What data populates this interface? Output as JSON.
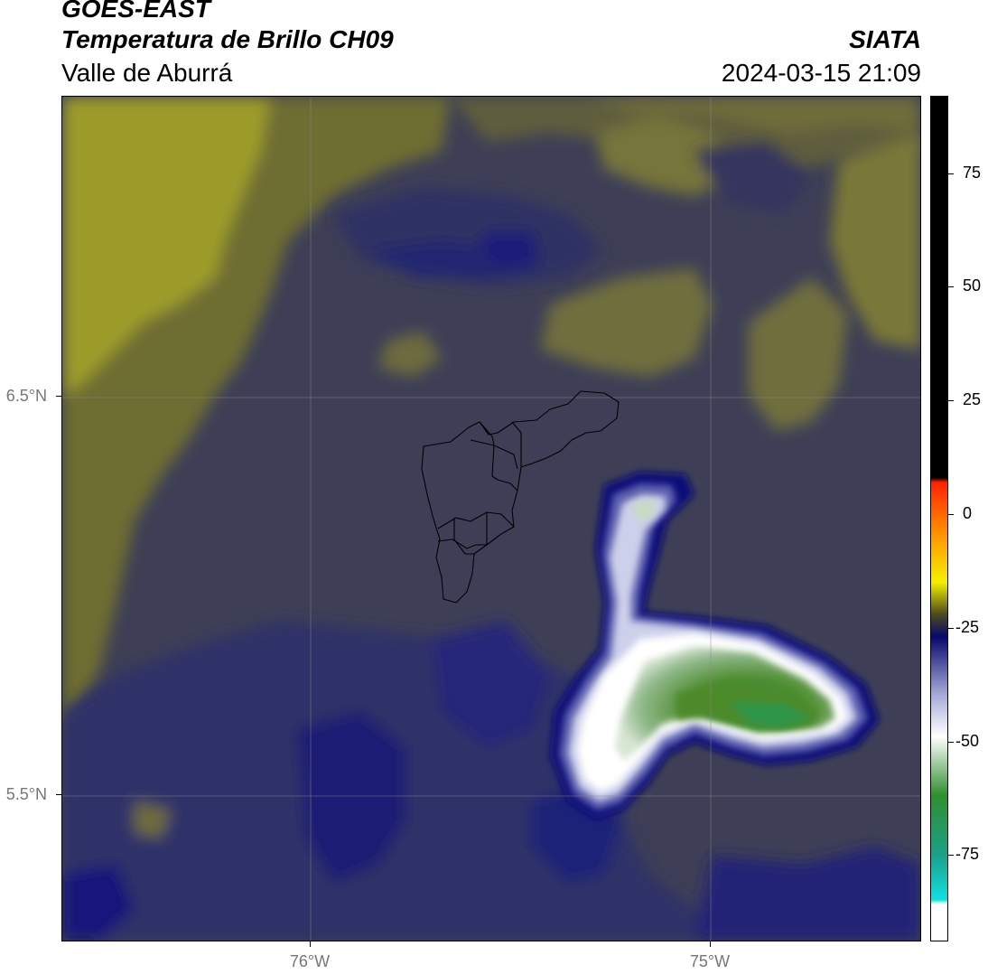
{
  "header": {
    "title": "GOES-EAST",
    "subtitle": "Temperatura de Brillo CH09",
    "region": "Valle de Aburrá",
    "organization": "SIATA",
    "timestamp": "2024-03-15 21:09"
  },
  "map": {
    "latitude_labels": [
      "6.5°N",
      "5.5°N"
    ],
    "longitude_labels": [
      "76°W",
      "75°W"
    ],
    "grid_lines": true,
    "background_color": "#3e3f56",
    "features": [
      "cold cloud top core (green, below -60)",
      "anvil (white/lavender, about -45 to -55)",
      "Aburrá Valley municipal boundaries outline"
    ]
  },
  "colorbar": {
    "tick_labels": [
      "75",
      "50",
      "25",
      "0",
      "-25",
      "-50",
      "-75"
    ],
    "stops": [
      {
        "value": 90,
        "color": "#000000"
      },
      {
        "value": 8,
        "color": "#000000"
      },
      {
        "value": 7,
        "color": "#ff2200"
      },
      {
        "value": -5,
        "color": "#ff9900"
      },
      {
        "value": -15,
        "color": "#f5f000"
      },
      {
        "value": -22,
        "color": "#4f4c1c"
      },
      {
        "value": -27,
        "color": "#08086e"
      },
      {
        "value": -40,
        "color": "#a8acd8"
      },
      {
        "value": -49,
        "color": "#ffffff"
      },
      {
        "value": -62,
        "color": "#2f8f2f"
      },
      {
        "value": -75,
        "color": "#1ca088"
      },
      {
        "value": -85,
        "color": "#10e0e0"
      },
      {
        "value": -86,
        "color": "#ffffff"
      },
      {
        "value": -90,
        "color": "#ffffff"
      }
    ]
  }
}
